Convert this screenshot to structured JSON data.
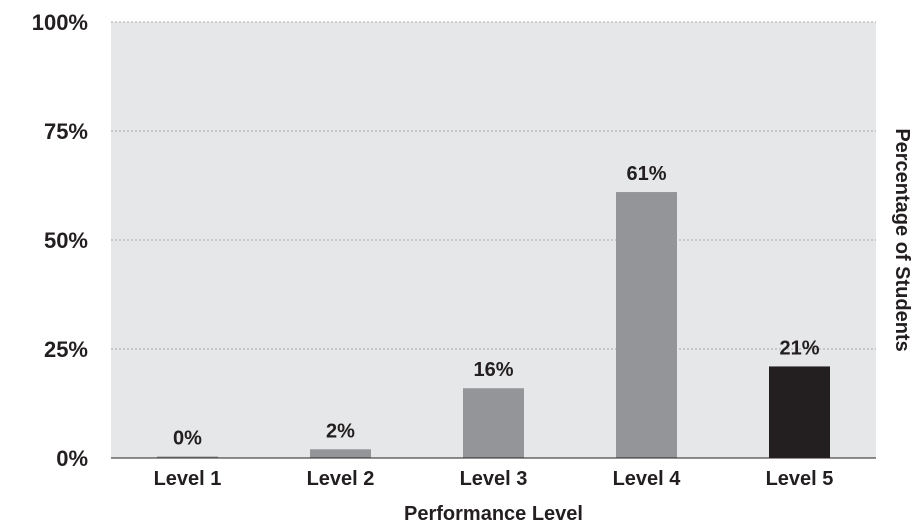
{
  "chart_data": {
    "type": "bar",
    "categories": [
      "Level 1",
      "Level 2",
      "Level 3",
      "Level 4",
      "Level 5"
    ],
    "values": [
      0,
      2,
      16,
      61,
      21
    ],
    "data_labels": [
      "0%",
      "2%",
      "16%",
      "61%",
      "21%"
    ],
    "bar_colors": [
      "#939598",
      "#939598",
      "#939598",
      "#939598",
      "#231f20"
    ],
    "plot_background": "#e6e7e8",
    "gridline_color": "#a7a9ac",
    "text_color": "#231f20",
    "xlabel": "Performance Level",
    "ylabel": "Percentage of Students",
    "ylabel_position": "right",
    "ylim": [
      0,
      100
    ],
    "yticks": [
      0,
      25,
      50,
      75,
      100
    ],
    "ytick_labels": [
      "0%",
      "25%",
      "50%",
      "75%",
      "100%"
    ],
    "grid": true
  }
}
